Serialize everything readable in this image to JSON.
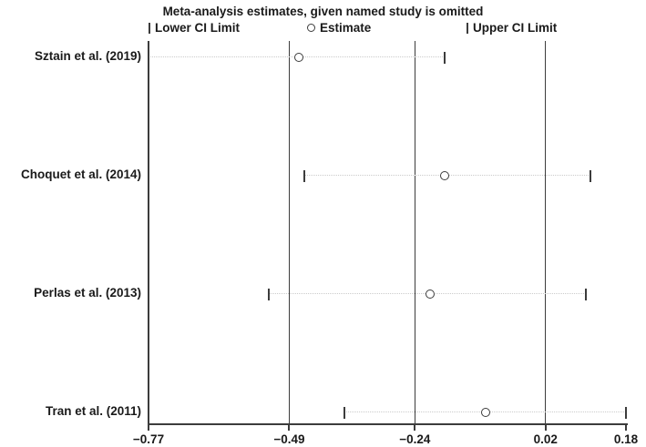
{
  "title": "Meta-analysis estimates, given named study is omitted",
  "legend": {
    "lower_label": "Lower CI Limit",
    "estimate_label": "Estimate",
    "upper_label": "Upper CI Limit"
  },
  "chart_data": {
    "type": "scatter",
    "subtype": "leave-one-out-sensitivity-forest",
    "title": "Meta-analysis estimates, given named study is omitted",
    "xlim": [
      -0.77,
      0.18
    ],
    "x_ticks": [
      -0.77,
      -0.49,
      -0.24,
      0.02,
      0.18
    ],
    "x_tick_labels": [
      "−0.77",
      "−0.49",
      "−0.24",
      "0.02",
      "0.18"
    ],
    "reference_lines": [
      -0.49,
      -0.24,
      0.02
    ],
    "overall": {
      "lower": -0.49,
      "estimate": -0.24,
      "upper": 0.02
    },
    "studies": [
      {
        "label": "Sztain et al. (2019)",
        "lower": -0.77,
        "estimate": -0.47,
        "upper": -0.18
      },
      {
        "label": "Choquet et al. (2014)",
        "lower": -0.46,
        "estimate": -0.18,
        "upper": 0.11
      },
      {
        "label": "Perlas et al. (2013)",
        "lower": -0.53,
        "estimate": -0.21,
        "upper": 0.1
      },
      {
        "label": "Tran et al. (2011)",
        "lower": -0.38,
        "estimate": -0.1,
        "upper": 0.18
      }
    ],
    "legend_entries": [
      "Lower CI Limit",
      "Estimate",
      "Upper CI Limit"
    ],
    "grid": false,
    "legend_position": "top",
    "colors": {
      "line": "#3c3c3c",
      "dotted_connector": "#cbcbcb",
      "marker_fill": "#ffffff",
      "text": "#1a1a1a"
    }
  }
}
